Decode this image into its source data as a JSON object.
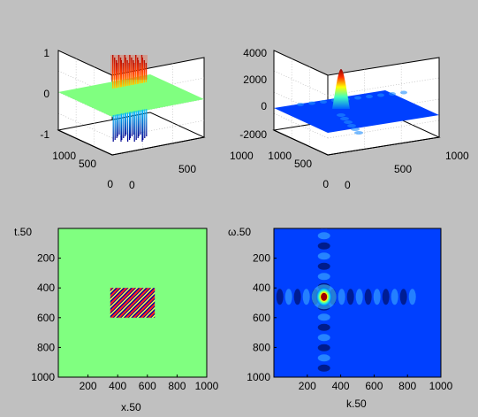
{
  "figure": {
    "background": "#c0c0c0"
  },
  "chart_data": [
    {
      "id": "surf-signal",
      "type": "surface",
      "description_values": {
        "plane_value": 0,
        "plane_color": "#80ff80",
        "block_x_range": [
          350,
          650
        ],
        "block_y_range": [
          400,
          600
        ],
        "block_value_range": [
          -1,
          1
        ]
      },
      "axes": {
        "z_ticks": [
          "1",
          "0",
          "-1"
        ],
        "zlim": [
          -1,
          1
        ],
        "left_ticks": [
          "1000",
          "500",
          "0"
        ],
        "right_ticks": [
          "0",
          "500",
          "1000"
        ]
      },
      "grid": true
    },
    {
      "id": "surf-spectrum",
      "type": "surface",
      "description_values": {
        "peak_value": 2800,
        "peak_position": [
          300,
          460
        ],
        "background_value": 0,
        "min_value": -500
      },
      "axes": {
        "z_ticks": [
          "4000",
          "2000",
          "0",
          "-2000"
        ],
        "zlim": [
          -2000,
          4000
        ],
        "left_ticks": [
          "1000",
          "500",
          "0"
        ],
        "right_ticks": [
          "0",
          "500",
          "1000"
        ]
      },
      "grid": true
    },
    {
      "id": "img-signal",
      "type": "heatmap",
      "title": "",
      "xlabel": "x.50",
      "ylabel": "t.50",
      "xlim": [
        0,
        1000
      ],
      "ylim": [
        0,
        1000
      ],
      "x_ticks": [
        "200",
        "400",
        "600",
        "800",
        "1000"
      ],
      "y_ticks": [
        "200",
        "400",
        "600",
        "800",
        "1000"
      ],
      "background_color": "#80ff80",
      "block": {
        "x_range": [
          350,
          650
        ],
        "y_range": [
          400,
          600
        ],
        "pattern": "diagonal stripes, values -1 to 1"
      }
    },
    {
      "id": "img-spectrum",
      "type": "heatmap",
      "title": "",
      "xlabel": "k.50",
      "ylabel": "ω.50",
      "xlim": [
        0,
        1000
      ],
      "ylim": [
        0,
        1000
      ],
      "x_ticks": [
        "200",
        "400",
        "600",
        "800",
        "1000"
      ],
      "y_ticks": [
        "200",
        "400",
        "600",
        "800",
        "1000"
      ],
      "background_color": "#0040ff",
      "peak": {
        "x": 300,
        "y": 460
      }
    }
  ]
}
